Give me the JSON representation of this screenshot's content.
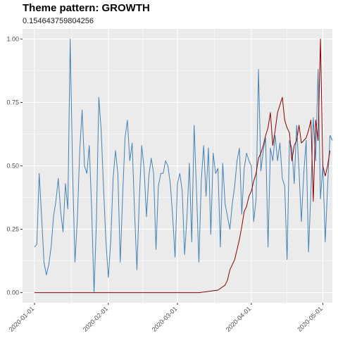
{
  "chart_data": {
    "type": "line",
    "title": "Theme pattern: GROWTH",
    "subtitle": "0.154643759804256",
    "xlabel": "",
    "ylabel": "",
    "x_ticks": [
      "2020-01-01",
      "2020-02-01",
      "2020-03-01",
      "2020-04-01",
      "2020-05-01"
    ],
    "y_ticks": [
      "0.00",
      "0.25",
      "0.50",
      "0.75",
      "1.00"
    ],
    "ylim": [
      -0.04,
      1.04
    ],
    "xlim": [
      "2019-12-27",
      "2020-05-05"
    ],
    "grid": true,
    "legend": "none",
    "colors": {
      "panel": "#ebebeb",
      "grid": "#ffffff",
      "series_blue": "#4682b4",
      "series_red": "#8b0000"
    },
    "series": [
      {
        "color": "#4682b4",
        "points": [
          [
            "2020-01-01",
            0.18
          ],
          [
            "2020-01-02",
            0.19
          ],
          [
            "2020-01-03",
            0.47
          ],
          [
            "2020-01-04",
            0.3
          ],
          [
            "2020-01-05",
            0.12
          ],
          [
            "2020-01-06",
            0.07
          ],
          [
            "2020-01-07",
            0.11
          ],
          [
            "2020-01-08",
            0.18
          ],
          [
            "2020-01-09",
            0.3
          ],
          [
            "2020-01-10",
            0.36
          ],
          [
            "2020-01-11",
            0.45
          ],
          [
            "2020-01-12",
            0.32
          ],
          [
            "2020-01-13",
            0.24
          ],
          [
            "2020-01-14",
            0.43
          ],
          [
            "2020-01-15",
            0.33
          ],
          [
            "2020-01-16",
            1.0
          ],
          [
            "2020-01-17",
            0.48
          ],
          [
            "2020-01-18",
            0.12
          ],
          [
            "2020-01-19",
            0.29
          ],
          [
            "2020-01-20",
            0.56
          ],
          [
            "2020-01-21",
            0.72
          ],
          [
            "2020-01-22",
            0.5
          ],
          [
            "2020-01-23",
            0.47
          ],
          [
            "2020-01-24",
            0.58
          ],
          [
            "2020-01-25",
            0.33
          ],
          [
            "2020-01-26",
            0.0
          ],
          [
            "2020-01-27",
            0.28
          ],
          [
            "2020-01-28",
            0.77
          ],
          [
            "2020-01-29",
            0.64
          ],
          [
            "2020-01-30",
            0.41
          ],
          [
            "2020-01-31",
            0.2
          ],
          [
            "2020-02-01",
            0.06
          ],
          [
            "2020-02-02",
            0.2
          ],
          [
            "2020-02-03",
            0.45
          ],
          [
            "2020-02-04",
            0.56
          ],
          [
            "2020-02-05",
            0.47
          ],
          [
            "2020-02-06",
            0.12
          ],
          [
            "2020-02-07",
            0.38
          ],
          [
            "2020-02-08",
            0.61
          ],
          [
            "2020-02-09",
            0.68
          ],
          [
            "2020-02-10",
            0.52
          ],
          [
            "2020-02-11",
            0.59
          ],
          [
            "2020-02-12",
            0.32
          ],
          [
            "2020-02-13",
            0.09
          ],
          [
            "2020-02-14",
            0.37
          ],
          [
            "2020-02-15",
            0.58
          ],
          [
            "2020-02-16",
            0.49
          ],
          [
            "2020-02-17",
            0.3
          ],
          [
            "2020-02-18",
            0.46
          ],
          [
            "2020-02-19",
            0.53
          ],
          [
            "2020-02-20",
            0.47
          ],
          [
            "2020-02-21",
            0.17
          ],
          [
            "2020-02-22",
            0.42
          ],
          [
            "2020-02-23",
            0.47
          ],
          [
            "2020-02-24",
            0.47
          ],
          [
            "2020-02-25",
            0.52
          ],
          [
            "2020-02-26",
            0.5
          ],
          [
            "2020-02-27",
            0.43
          ],
          [
            "2020-02-28",
            0.3
          ],
          [
            "2020-02-29",
            0.14
          ],
          [
            "2020-03-01",
            0.43
          ],
          [
            "2020-03-02",
            0.47
          ],
          [
            "2020-03-03",
            0.4
          ],
          [
            "2020-03-04",
            0.15
          ],
          [
            "2020-03-05",
            0.3
          ],
          [
            "2020-03-06",
            0.51
          ],
          [
            "2020-03-07",
            0.2
          ],
          [
            "2020-03-08",
            0.66
          ],
          [
            "2020-03-09",
            0.4
          ],
          [
            "2020-03-10",
            0.12
          ],
          [
            "2020-03-11",
            0.44
          ],
          [
            "2020-03-12",
            0.58
          ],
          [
            "2020-03-13",
            0.38
          ],
          [
            "2020-03-14",
            0.57
          ],
          [
            "2020-03-15",
            0.23
          ],
          [
            "2020-03-16",
            0.55
          ],
          [
            "2020-03-17",
            0.47
          ],
          [
            "2020-03-18",
            0.49
          ],
          [
            "2020-03-19",
            0.18
          ],
          [
            "2020-03-20",
            0.51
          ],
          [
            "2020-03-21",
            0.35
          ],
          [
            "2020-03-22",
            0.3
          ],
          [
            "2020-03-23",
            0.25
          ],
          [
            "2020-03-24",
            0.35
          ],
          [
            "2020-03-25",
            0.42
          ],
          [
            "2020-03-26",
            0.52
          ],
          [
            "2020-03-27",
            0.57
          ],
          [
            "2020-03-28",
            0.31
          ],
          [
            "2020-03-29",
            0.49
          ],
          [
            "2020-03-30",
            0.55
          ],
          [
            "2020-03-31",
            0.52
          ],
          [
            "2020-04-01",
            0.5
          ],
          [
            "2020-04-02",
            0.28
          ],
          [
            "2020-04-03",
            0.37
          ],
          [
            "2020-04-04",
            0.88
          ],
          [
            "2020-04-05",
            0.48
          ],
          [
            "2020-04-06",
            0.56
          ],
          [
            "2020-04-07",
            0.61
          ],
          [
            "2020-04-08",
            0.18
          ],
          [
            "2020-04-09",
            0.57
          ],
          [
            "2020-04-10",
            0.52
          ],
          [
            "2020-04-11",
            0.62
          ],
          [
            "2020-04-12",
            0.52
          ],
          [
            "2020-04-13",
            0.59
          ],
          [
            "2020-04-14",
            0.45
          ],
          [
            "2020-04-15",
            0.42
          ],
          [
            "2020-04-16",
            0.13
          ],
          [
            "2020-04-17",
            0.6
          ],
          [
            "2020-04-18",
            0.57
          ],
          [
            "2020-04-19",
            0.43
          ],
          [
            "2020-04-20",
            0.66
          ],
          [
            "2020-04-21",
            0.48
          ],
          [
            "2020-04-22",
            0.28
          ],
          [
            "2020-04-23",
            0.47
          ],
          [
            "2020-04-24",
            0.6
          ],
          [
            "2020-04-25",
            0.16
          ],
          [
            "2020-04-26",
            0.4
          ],
          [
            "2020-04-27",
            0.69
          ],
          [
            "2020-04-28",
            0.52
          ],
          [
            "2020-04-29",
            0.88
          ],
          [
            "2020-04-30",
            0.37
          ],
          [
            "2020-05-01",
            0.5
          ],
          [
            "2020-05-02",
            0.2
          ],
          [
            "2020-05-03",
            0.42
          ],
          [
            "2020-05-04",
            0.62
          ],
          [
            "2020-05-05",
            0.6
          ]
        ]
      },
      {
        "color": "#8b0000",
        "points": [
          [
            "2020-01-01",
            0.0
          ],
          [
            "2020-03-10",
            0.0
          ],
          [
            "2020-03-15",
            0.006
          ],
          [
            "2020-03-18",
            0.01
          ],
          [
            "2020-03-21",
            0.03
          ],
          [
            "2020-03-22",
            0.05
          ],
          [
            "2020-03-23",
            0.09
          ],
          [
            "2020-03-24",
            0.11
          ],
          [
            "2020-03-25",
            0.13
          ],
          [
            "2020-03-26",
            0.17
          ],
          [
            "2020-03-27",
            0.21
          ],
          [
            "2020-03-28",
            0.26
          ],
          [
            "2020-03-29",
            0.32
          ],
          [
            "2020-03-30",
            0.34
          ],
          [
            "2020-03-31",
            0.38
          ],
          [
            "2020-04-01",
            0.4
          ],
          [
            "2020-04-02",
            0.44
          ],
          [
            "2020-04-03",
            0.47
          ],
          [
            "2020-04-04",
            0.53
          ],
          [
            "2020-04-05",
            0.55
          ],
          [
            "2020-04-06",
            0.58
          ],
          [
            "2020-04-07",
            0.62
          ],
          [
            "2020-04-08",
            0.65
          ],
          [
            "2020-04-09",
            0.71
          ],
          [
            "2020-04-10",
            0.58
          ],
          [
            "2020-04-11",
            0.64
          ],
          [
            "2020-04-12",
            0.71
          ],
          [
            "2020-04-13",
            0.74
          ],
          [
            "2020-04-14",
            0.77
          ],
          [
            "2020-04-15",
            0.68
          ],
          [
            "2020-04-16",
            0.65
          ],
          [
            "2020-04-17",
            0.63
          ],
          [
            "2020-04-18",
            0.52
          ],
          [
            "2020-04-19",
            0.58
          ],
          [
            "2020-04-20",
            0.6
          ],
          [
            "2020-04-21",
            0.66
          ],
          [
            "2020-04-22",
            0.59
          ],
          [
            "2020-04-23",
            0.6
          ],
          [
            "2020-04-24",
            0.61
          ],
          [
            "2020-04-25",
            0.64
          ],
          [
            "2020-04-26",
            0.68
          ],
          [
            "2020-04-27",
            0.36
          ],
          [
            "2020-04-28",
            0.68
          ],
          [
            "2020-04-29",
            0.6
          ],
          [
            "2020-04-30",
            1.0
          ],
          [
            "2020-05-01",
            0.5
          ],
          [
            "2020-05-02",
            0.46
          ],
          [
            "2020-05-03",
            0.5
          ],
          [
            "2020-05-04",
            0.56
          ]
        ]
      }
    ]
  }
}
